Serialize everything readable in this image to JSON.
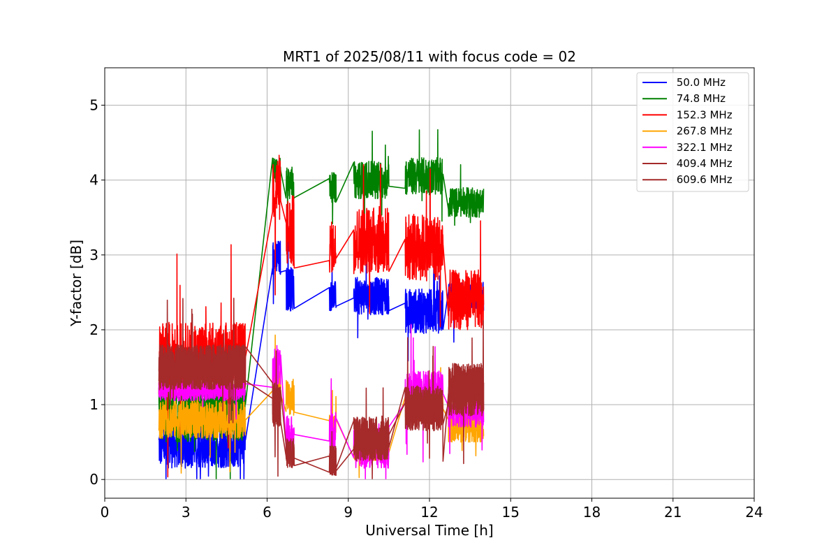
{
  "chart_data": {
    "type": "line",
    "title": "MRT1 of 2025/08/11 with focus code = 02",
    "xlabel": "Universal Time [h]",
    "ylabel": "Y-factor [dB]",
    "xlim": [
      0,
      24
    ],
    "ylim": [
      -0.25,
      5.5
    ],
    "xticks": [
      0,
      3,
      6,
      9,
      12,
      15,
      18,
      21,
      24
    ],
    "yticks": [
      0,
      1,
      2,
      3,
      4,
      5
    ],
    "grid": true,
    "legend_position": "top-right",
    "segments": [
      [
        2.0,
        5.2
      ],
      [
        6.2,
        6.5
      ],
      [
        6.7,
        7.0
      ],
      [
        8.3,
        8.55
      ],
      [
        9.2,
        10.5
      ],
      [
        11.1,
        12.5
      ],
      [
        12.7,
        14.0
      ]
    ],
    "series": [
      {
        "name": " 50.0 MHz",
        "color": "#0000ff",
        "levels": [
          0.45,
          2.95,
          2.55,
          2.45,
          2.45,
          2.25,
          2.45
        ],
        "noise": [
          0.3,
          0.25,
          0.3,
          0.2,
          0.25,
          0.3,
          0.2
        ]
      },
      {
        "name": " 74.8 MHz",
        "color": "#008000",
        "levels": [
          0.9,
          4.1,
          3.95,
          3.9,
          4.0,
          4.05,
          3.7
        ],
        "noise": [
          0.4,
          0.2,
          0.25,
          0.2,
          0.25,
          0.25,
          0.2
        ]
      },
      {
        "name": " 152.3 MHz",
        "color": "#ff0000",
        "levels": [
          1.6,
          3.9,
          3.3,
          3.1,
          3.2,
          3.1,
          2.4
        ],
        "noise": [
          0.5,
          0.45,
          0.5,
          0.35,
          0.45,
          0.45,
          0.4
        ]
      },
      {
        "name": " 267.8 MHz",
        "color": "#ffa500",
        "levels": [
          0.8,
          1.3,
          1.1,
          0.75,
          0.4,
          0.95,
          0.7
        ],
        "noise": [
          0.25,
          0.2,
          0.25,
          0.15,
          0.15,
          0.2,
          0.2
        ]
      },
      {
        "name": " 322.1 MHz",
        "color": "#ff00ff",
        "levels": [
          1.2,
          1.5,
          0.55,
          0.6,
          0.45,
          1.15,
          0.9
        ],
        "noise": [
          0.15,
          0.3,
          0.3,
          0.3,
          0.3,
          0.3,
          0.2
        ]
      },
      {
        "name": " 409.4 MHz",
        "color": "#a52a2a",
        "levels": [
          1.5,
          1.0,
          0.35,
          0.25,
          0.55,
          0.95,
          1.2
        ],
        "noise": [
          0.3,
          0.3,
          0.2,
          0.2,
          0.3,
          0.3,
          0.35
        ]
      },
      {
        "name": " 609.6 MHz",
        "color": "#a52a2a",
        "levels": [
          1.5,
          1.0,
          0.35,
          0.25,
          0.55,
          0.95,
          1.2
        ],
        "noise": [
          0.3,
          0.3,
          0.2,
          0.2,
          0.3,
          0.3,
          0.35
        ]
      }
    ]
  }
}
